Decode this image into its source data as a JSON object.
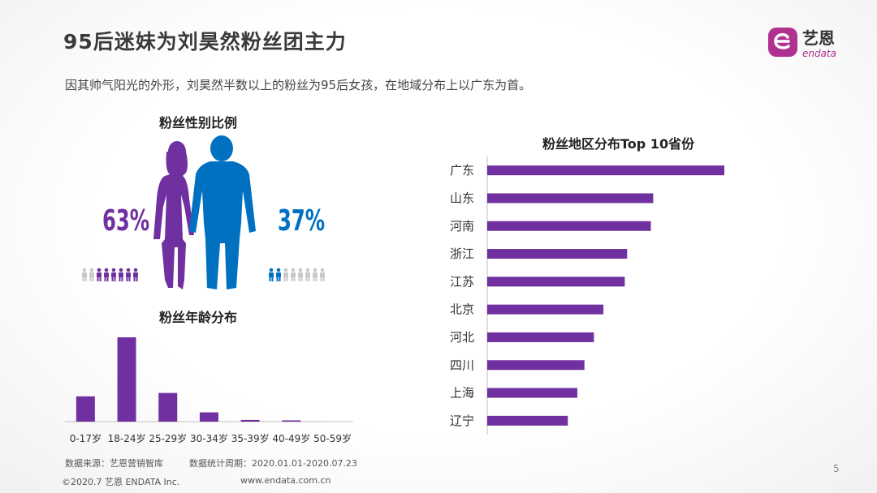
{
  "header": {
    "title": "95后迷妹为刘昊然粉丝团主力",
    "subtitle": "因其帅气阳光的外形，刘昊然半数以上的粉丝为95后女孩，在地域分布上以广东为首。",
    "logo_text": "艺恩",
    "logo_sub": "endata"
  },
  "colors": {
    "female": "#7030a0",
    "male": "#0070c0",
    "bar": "#7030a0",
    "grey_person": "#c8c8c8"
  },
  "gender": {
    "title": "粉丝性别比例",
    "female_label": "63%",
    "male_label": "37%",
    "female_icons_colored": 6,
    "male_icons_colored": 2,
    "icons_total": 8
  },
  "chart_data": [
    {
      "type": "pie",
      "title": "粉丝性别比例",
      "categories": [
        "女",
        "男"
      ],
      "values": [
        63,
        37
      ]
    },
    {
      "type": "bar",
      "title": "粉丝年龄分布",
      "categories": [
        "0-17岁",
        "18-24岁",
        "25-29岁",
        "30-34岁",
        "35-39岁",
        "40-49岁",
        "50-59岁"
      ],
      "values": [
        30,
        100,
        34,
        11,
        2,
        1.5,
        0
      ],
      "ylim": [
        0,
        100
      ]
    },
    {
      "type": "bar",
      "orientation": "horizontal",
      "title": "粉丝地区分布Top  10省份",
      "categories": [
        "广东",
        "山东",
        "河南",
        "浙江",
        "江苏",
        "北京",
        "河北",
        "四川",
        "上海",
        "辽宁"
      ],
      "values": [
        100,
        70,
        69,
        59,
        58,
        49,
        45,
        41,
        38,
        34
      ],
      "xlim": [
        0,
        100
      ]
    }
  ],
  "footer": {
    "source": "数据来源：艺恩营销智库",
    "period": "数据统计周期：2020.01.01-2020.07.23",
    "copyright": "©2020.7 艺恩 ENDATA Inc.",
    "website": "www.endata.com.cn",
    "page_number": "5"
  }
}
